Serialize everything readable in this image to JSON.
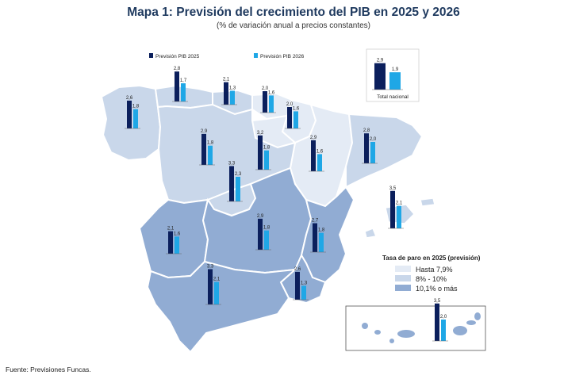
{
  "title": "Mapa 1: Previsión del crecimiento del PIB en 2025 y 2026",
  "subtitle": "(% de variación anual a precios constantes)",
  "source": "Fuente: Previsiones Funcas.",
  "colors": {
    "pib_2025": "#0b1f5c",
    "pib_2026": "#1fa7e6",
    "paro_low": "#e4ebf5",
    "paro_mid": "#c9d7ea",
    "paro_high": "#91acd3",
    "border": "#ffffff"
  },
  "chart_data": {
    "type": "bar",
    "series": [
      {
        "name": "Previsión PIB 2025",
        "color": "#0b1f5c"
      },
      {
        "name": "Previsión PIB 2026",
        "color": "#1fa7e6"
      }
    ],
    "regions": [
      {
        "id": "galicia",
        "v2025": 2.6,
        "v2026": 1.8,
        "l2025": "2,6",
        "l2026": "1,8",
        "paro": "8% - 10%"
      },
      {
        "id": "asturias",
        "v2025": 2.8,
        "v2026": 1.7,
        "l2025": "2,8",
        "l2026": "1,7",
        "paro": "8% - 10%"
      },
      {
        "id": "cantabria",
        "v2025": 2.1,
        "v2026": 1.3,
        "l2025": "2,1",
        "l2026": "1,3",
        "paro": "8% - 10%"
      },
      {
        "id": "pais-vasco",
        "v2025": 2.0,
        "v2026": 1.6,
        "l2025": "2,0",
        "l2026": "1,6",
        "paro": "Hasta 7,9%"
      },
      {
        "id": "navarra",
        "v2025": 2.0,
        "v2026": 1.6,
        "l2025": "2,0",
        "l2026": "1,6",
        "paro": "Hasta 7,9%"
      },
      {
        "id": "la-rioja",
        "v2025": 3.2,
        "v2026": 1.8,
        "l2025": "3,2",
        "l2026": "1,8",
        "paro": "Hasta 7,9%"
      },
      {
        "id": "aragon",
        "v2025": 2.9,
        "v2026": 1.6,
        "l2025": "2,9",
        "l2026": "1,6",
        "paro": "Hasta 7,9%"
      },
      {
        "id": "cataluna",
        "v2025": 2.8,
        "v2026": 2.0,
        "l2025": "2,8",
        "l2026": "2,0",
        "paro": "8% - 10%"
      },
      {
        "id": "castilla-y-leon",
        "v2025": 2.9,
        "v2026": 1.8,
        "l2025": "2,9",
        "l2026": "1,8",
        "paro": "8% - 10%"
      },
      {
        "id": "madrid",
        "v2025": 3.3,
        "v2026": 2.3,
        "l2025": "3,3",
        "l2026": "2,3",
        "paro": "8% - 10%"
      },
      {
        "id": "baleares",
        "v2025": 3.5,
        "v2026": 2.1,
        "l2025": "3,5",
        "l2026": "2,1",
        "paro": "8% - 10%"
      },
      {
        "id": "extremadura",
        "v2025": 2.1,
        "v2026": 1.6,
        "l2025": "2,1",
        "l2026": "1,6",
        "paro": "10,1% o más"
      },
      {
        "id": "castilla-la-mancha",
        "v2025": 2.9,
        "v2026": 1.8,
        "l2025": "2,9",
        "l2026": "1,8",
        "paro": "10,1% o más"
      },
      {
        "id": "comunidad-valenciana",
        "v2025": 2.7,
        "v2026": 1.8,
        "l2025": "2,7",
        "l2026": "1,8",
        "paro": "10,1% o más"
      },
      {
        "id": "murcia",
        "v2025": 2.6,
        "v2026": 1.3,
        "l2025": "2,6",
        "l2026": "1,3",
        "paro": "10,1% o más"
      },
      {
        "id": "andalucia",
        "v2025": 3.3,
        "v2026": 2.1,
        "l2025": "3,3",
        "l2026": "2,1",
        "paro": "10,1% o más"
      },
      {
        "id": "canarias",
        "v2025": 3.5,
        "v2026": 2.0,
        "l2025": "3,5",
        "l2026": "2,0",
        "paro": "10,1% o más"
      }
    ],
    "national": {
      "label": "Total nacional",
      "v2025": 2.9,
      "v2026": 1.9,
      "l2025": "2,9",
      "l2026": "1,9"
    }
  },
  "legend_paro": {
    "title": "Tasa de paro en 2025 (previsión)",
    "items": [
      {
        "label": "Hasta 7,9%",
        "color": "#e4ebf5"
      },
      {
        "label": "8% - 10%",
        "color": "#c9d7ea"
      },
      {
        "label": "10,1% o más",
        "color": "#91acd3"
      }
    ]
  }
}
